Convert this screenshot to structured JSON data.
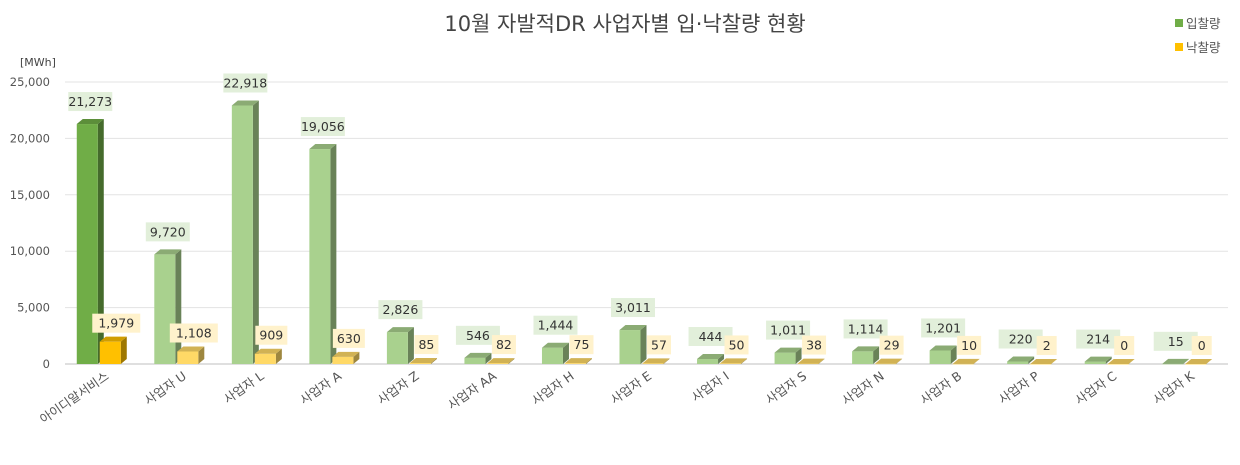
{
  "chart_data": {
    "type": "bar",
    "title": "10월 자발적DR 사업자별 입·낙찰량 현황",
    "unit_label": "[MWh]",
    "ylim": [
      0,
      25000
    ],
    "y_ticks": [
      "0",
      "5,000",
      "10,000",
      "15,000",
      "20,000",
      "25,000"
    ],
    "grid": true,
    "legend_position": "top-right",
    "categories": [
      "아이디알서비스",
      "사업자 U",
      "사업자 L",
      "사업자 A",
      "사업자 Z",
      "사업자 AA",
      "사업자 H",
      "사업자 E",
      "사업자 I",
      "사업자 S",
      "사업자 N",
      "사업자 B",
      "사업자 P",
      "사업자 C",
      "사업자 K"
    ],
    "series": [
      {
        "name": "입찰량",
        "color": "#a9d18e",
        "highlight_color": "#70ad47",
        "values": [
          21273,
          9720,
          22918,
          19056,
          2826,
          546,
          1444,
          3011,
          444,
          1011,
          1114,
          1201,
          220,
          214,
          15
        ],
        "labels": [
          "21,273",
          "9,720",
          "22,918",
          "19,056",
          "2,826",
          "546",
          "1,444",
          "3,011",
          "444",
          "1,011",
          "1,114",
          "1,201",
          "220",
          "214",
          "15"
        ]
      },
      {
        "name": "낙찰량",
        "color": "#ffd966",
        "highlight_color": "#ffc000",
        "values": [
          1979,
          1108,
          909,
          630,
          85,
          82,
          75,
          57,
          50,
          38,
          29,
          10,
          2,
          0,
          0
        ],
        "labels": [
          "1,979",
          "1,108",
          "909",
          "630",
          "85",
          "82",
          "75",
          "57",
          "50",
          "38",
          "29",
          "10",
          "2",
          "0",
          "0"
        ]
      }
    ]
  }
}
